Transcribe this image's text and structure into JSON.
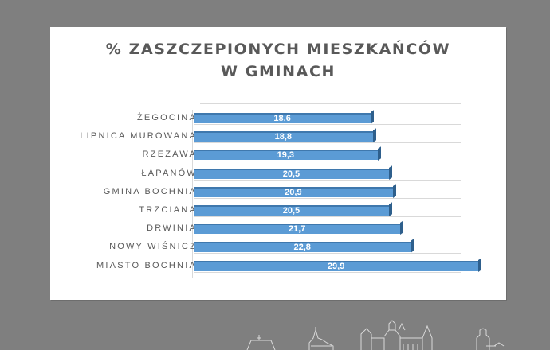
{
  "chart_data": {
    "type": "bar",
    "orientation": "horizontal",
    "style": "3d-clustered",
    "title": "% ZASZCZEPIONYCH  MIESZKAŃCÓW W GMINACH",
    "title_lines": [
      "% ZASZCZEPIONYCH  MIESZKAŃCÓW",
      "W GMINACH"
    ],
    "categories": [
      "ŻEGOCINA",
      "LIPNICA MUROWANA",
      "RZEZAWA",
      "ŁAPANÓW",
      "GMINA BOCHNIA",
      "TRZCIANA",
      "DRWINIA",
      "NOWY WIŚNICZ",
      "MIASTO BOCHNIA"
    ],
    "values": [
      18.6,
      18.8,
      19.3,
      20.5,
      20.9,
      20.5,
      21.7,
      22.8,
      29.9
    ],
    "value_labels": [
      "18,6",
      "18,8",
      "19,3",
      "20,5",
      "20,9",
      "20,5",
      "21,7",
      "22,8",
      "29,9"
    ],
    "xlabel": "",
    "ylabel": "",
    "xlim": [
      0,
      30
    ],
    "grid": true,
    "legend": "none",
    "bar_color": "#5b9bd5",
    "data_labels": "inside-center, white bold"
  },
  "page": {
    "background_color": "#7f7f7f",
    "panel_color": "#ffffff",
    "footer_decoration": "city-skyline-outline"
  }
}
